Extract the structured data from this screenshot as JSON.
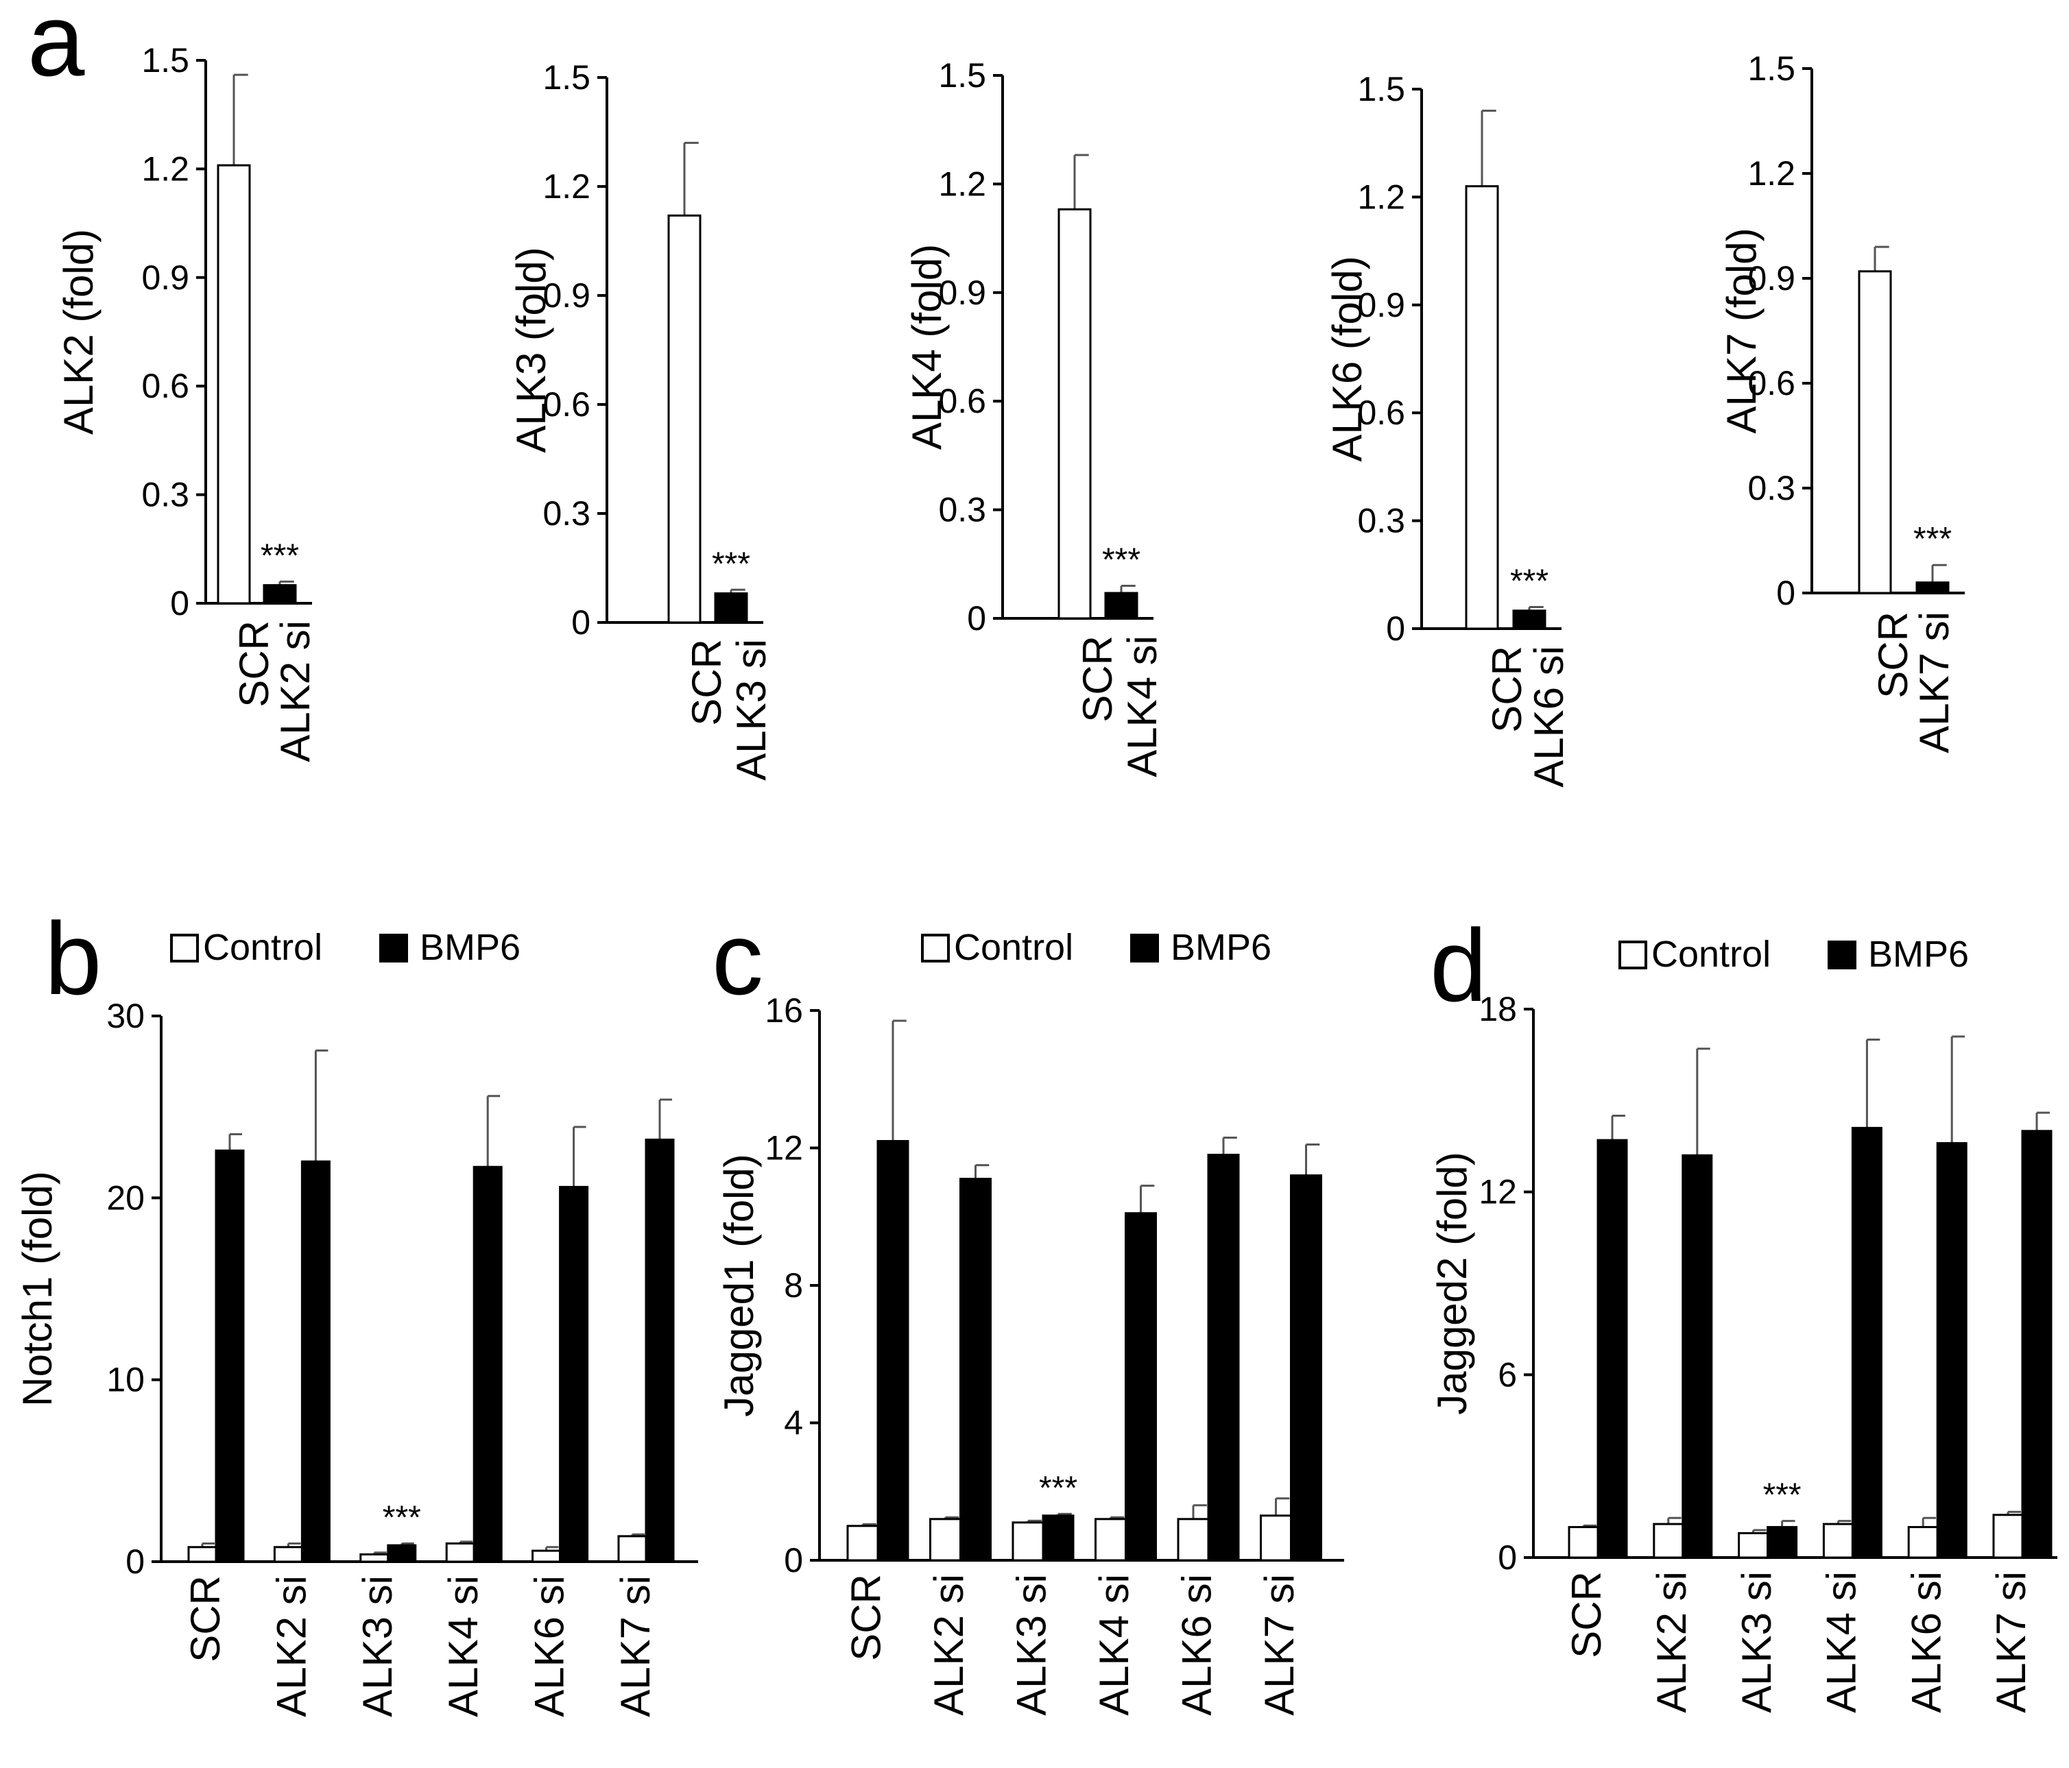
{
  "chart_data": [
    {
      "id": "a1",
      "type": "bar",
      "panel_label": "a",
      "ylabel": "ALK2 (fold)",
      "ylim": [
        0,
        1.5
      ],
      "yticks": [
        "0",
        "0.3",
        "0.6",
        "0.9",
        "1.2",
        "1.5"
      ],
      "categories": [
        "SCR",
        "ALK2 si"
      ],
      "values": [
        1.21,
        0.05
      ],
      "errors": [
        0.25,
        0.01
      ],
      "fills": [
        "#ffffff",
        "#000000"
      ],
      "significance": [
        "",
        "***"
      ]
    },
    {
      "id": "a2",
      "type": "bar",
      "ylabel": "ALK3 (fold)",
      "ylim": [
        0,
        1.5
      ],
      "yticks": [
        "0",
        "0.3",
        "0.6",
        "0.9",
        "1.2",
        "1.5"
      ],
      "categories": [
        "SCR",
        "ALK3 si"
      ],
      "values": [
        1.12,
        0.08
      ],
      "errors": [
        0.2,
        0.01
      ],
      "fills": [
        "#ffffff",
        "#000000"
      ],
      "significance": [
        "",
        "***"
      ]
    },
    {
      "id": "a3",
      "type": "bar",
      "ylabel": "ALK4 (fold)",
      "ylim": [
        0,
        1.5
      ],
      "yticks": [
        "0",
        "0.3",
        "0.6",
        "0.9",
        "1.2",
        "1.5"
      ],
      "categories": [
        "SCR",
        "ALK4 si"
      ],
      "values": [
        1.13,
        0.07
      ],
      "errors": [
        0.15,
        0.02
      ],
      "fills": [
        "#ffffff",
        "#000000"
      ],
      "significance": [
        "",
        "***"
      ]
    },
    {
      "id": "a4",
      "type": "bar",
      "ylabel": "ALK6 (fold)",
      "ylim": [
        0,
        1.5
      ],
      "yticks": [
        "0",
        "0.3",
        "0.6",
        "0.9",
        "1.2",
        "1.5"
      ],
      "categories": [
        "SCR",
        "ALK6 si"
      ],
      "values": [
        1.23,
        0.05
      ],
      "errors": [
        0.21,
        0.01
      ],
      "fills": [
        "#ffffff",
        "#000000"
      ],
      "significance": [
        "",
        "***"
      ]
    },
    {
      "id": "a5",
      "type": "bar",
      "ylabel": "ALK7 (fold)",
      "ylim": [
        0,
        1.5
      ],
      "yticks": [
        "0",
        "0.3",
        "0.6",
        "0.9",
        "1.2",
        "1.5"
      ],
      "categories": [
        "SCR",
        "ALK7 si"
      ],
      "values": [
        0.92,
        0.03
      ],
      "errors": [
        0.07,
        0.05
      ],
      "fills": [
        "#ffffff",
        "#000000"
      ],
      "significance": [
        "",
        "***"
      ]
    },
    {
      "id": "b",
      "type": "bar",
      "panel_label": "b",
      "ylabel": "Notch1 (fold)",
      "ylim": [
        0,
        30
      ],
      "yticks": [
        "0",
        "10",
        "20",
        "30"
      ],
      "categories": [
        "SCR",
        "ALK2 si",
        "ALK3 si",
        "ALK4 si",
        "ALK6 si",
        "ALK7 si"
      ],
      "legend": [
        "Control",
        "BMP6"
      ],
      "series": [
        {
          "fill": "#ffffff",
          "values": [
            0.8,
            0.8,
            0.4,
            1.0,
            0.6,
            1.4
          ],
          "errors": [
            0.2,
            0.2,
            0.1,
            0.1,
            0.2,
            0.1
          ]
        },
        {
          "fill": "#000000",
          "values": [
            22.6,
            22.0,
            0.9,
            21.7,
            20.6,
            23.2
          ],
          "errors": [
            0.9,
            6.1,
            0.1,
            3.9,
            3.3,
            2.2
          ]
        }
      ],
      "significance": [
        "",
        "",
        "***",
        "",
        "",
        ""
      ]
    },
    {
      "id": "c",
      "type": "bar",
      "panel_label": "c",
      "ylabel": "Jagged1 (fold)",
      "ylim": [
        0,
        16
      ],
      "yticks": [
        "0",
        "4",
        "8",
        "12",
        "16"
      ],
      "categories": [
        "SCR",
        "ALK2 si",
        "ALK3 si",
        "ALK4 si",
        "ALK6 si",
        "ALK7 si"
      ],
      "legend": [
        "Control",
        "BMP6"
      ],
      "series": [
        {
          "fill": "#ffffff",
          "values": [
            1.0,
            1.2,
            1.1,
            1.2,
            1.2,
            1.3
          ],
          "errors": [
            0.05,
            0.05,
            0.05,
            0.05,
            0.4,
            0.5
          ]
        },
        {
          "fill": "#000000",
          "values": [
            12.2,
            11.1,
            1.3,
            10.1,
            11.8,
            11.2
          ],
          "errors": [
            3.5,
            0.4,
            0.05,
            0.8,
            0.5,
            0.9
          ]
        }
      ],
      "significance": [
        "",
        "",
        "***",
        "",
        "",
        ""
      ]
    },
    {
      "id": "d",
      "type": "bar",
      "panel_label": "d",
      "ylabel": "Jagged2 (fold)",
      "ylim": [
        0,
        18
      ],
      "yticks": [
        "0",
        "6",
        "12",
        "18"
      ],
      "categories": [
        "SCR",
        "ALK2 si",
        "ALK3 si",
        "ALK4 si",
        "ALK6 si",
        "ALK7 si"
      ],
      "legend": [
        "Control",
        "BMP6"
      ],
      "series": [
        {
          "fill": "#ffffff",
          "values": [
            1.0,
            1.1,
            0.8,
            1.1,
            1.0,
            1.4
          ],
          "errors": [
            0.05,
            0.2,
            0.1,
            0.1,
            0.3,
            0.1
          ]
        },
        {
          "fill": "#000000",
          "values": [
            13.7,
            13.2,
            1.0,
            14.1,
            13.6,
            14.0
          ],
          "errors": [
            0.8,
            3.5,
            0.2,
            2.9,
            3.5,
            0.6
          ]
        }
      ],
      "significance": [
        "",
        "",
        "***",
        "",
        "",
        ""
      ]
    }
  ]
}
